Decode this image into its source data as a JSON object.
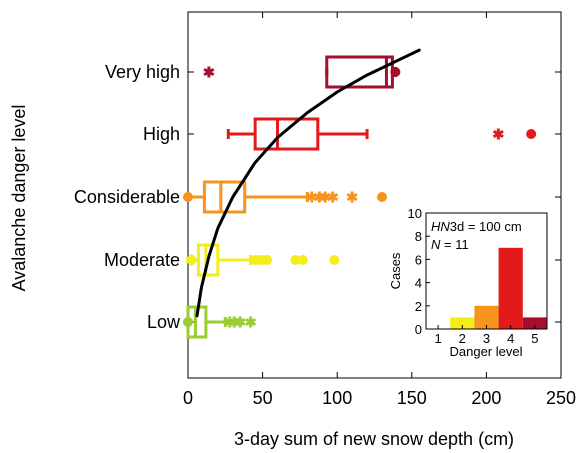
{
  "chart_data": [
    {
      "type": "box",
      "xlabel": "3-day sum of new snow depth (cm)",
      "ylabel": "Avalanche danger level",
      "xlim": [
        0,
        250
      ],
      "xticks": [
        "0",
        "50",
        "100",
        "150",
        "200",
        "250"
      ],
      "categories": [
        "Very high",
        "High",
        "Considerable",
        "Moderate",
        "Low"
      ],
      "boxes": [
        {
          "category": "Very high",
          "color": "#a50f2d",
          "whisker_low": 93,
          "q1": 93,
          "median": 133,
          "q3": 137,
          "whisker_high": 139,
          "mean": 139,
          "outliers_star": [
            14
          ],
          "outliers_dot": []
        },
        {
          "category": "High",
          "color": "#e31a1c",
          "whisker_low": 27,
          "q1": 45,
          "median": 60,
          "q3": 87,
          "whisker_high": 120,
          "mean": null,
          "outliers_star": [
            208
          ],
          "outliers_dot": [
            230
          ]
        },
        {
          "category": "Considerable",
          "color": "#f7941d",
          "whisker_low": 0,
          "q1": 11,
          "median": 22,
          "q3": 38,
          "whisker_high": 80,
          "mean": null,
          "outliers_star": [
            83,
            88,
            92,
            97,
            110
          ],
          "outliers_dot": [
            0,
            130
          ]
        },
        {
          "category": "Moderate",
          "color": "#f4ed1c",
          "whisker_low": 3,
          "q1": 7,
          "median": 12,
          "q3": 20,
          "whisker_high": 42,
          "mean": null,
          "outliers_star": [
            2
          ],
          "outliers_dot": [
            45,
            48,
            50,
            53,
            72,
            77,
            98
          ]
        },
        {
          "category": "Low",
          "color": "#9acd32",
          "whisker_low": 0,
          "q1": 0,
          "median": 5,
          "q3": 12,
          "whisker_high": 25,
          "mean": null,
          "outliers_star": [
            28,
            31,
            35,
            42
          ],
          "outliers_dot": [
            0
          ]
        }
      ],
      "fit_curve": {
        "color": "#000000",
        "x": [
          6,
          9,
          14,
          20,
          30,
          45,
          60,
          80,
          100,
          120,
          140,
          155
        ],
        "y": [
          0.1,
          0.55,
          1.05,
          1.5,
          2.0,
          2.55,
          2.95,
          3.35,
          3.68,
          3.95,
          4.18,
          4.35
        ]
      }
    },
    {
      "type": "bar",
      "annotation_var": "HN",
      "annotation_rest": "3d = 100 cm",
      "annotation_n_var": "N",
      "annotation_n_rest": " = 11",
      "xlabel": "Danger level",
      "ylabel": "Cases",
      "categories": [
        "1",
        "2",
        "3",
        "4",
        "5"
      ],
      "values": [
        0,
        1,
        2,
        7,
        1
      ],
      "colors": [
        "#9acd32",
        "#f4ed1c",
        "#f7941d",
        "#e31a1c",
        "#a50f2d"
      ],
      "ylim": [
        0,
        10
      ],
      "yticks": [
        "0",
        "2",
        "4",
        "6",
        "8",
        "10"
      ]
    }
  ]
}
